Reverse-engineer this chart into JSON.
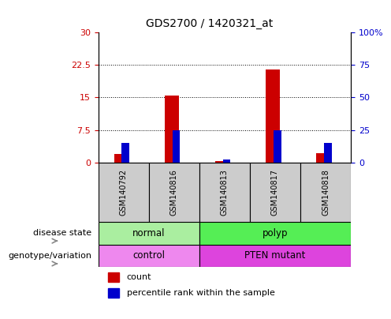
{
  "title": "GDS2700 / 1420321_at",
  "samples": [
    "GSM140792",
    "GSM140816",
    "GSM140813",
    "GSM140817",
    "GSM140818"
  ],
  "counts": [
    2.0,
    15.5,
    0.25,
    21.5,
    2.2
  ],
  "percentile_ranks_pct": [
    15,
    25,
    2.5,
    25,
    15
  ],
  "ylim_left": [
    0,
    30
  ],
  "ylim_right": [
    0,
    100
  ],
  "yticks_left": [
    0,
    7.5,
    15,
    22.5,
    30
  ],
  "ytick_labels_left": [
    "0",
    "7.5",
    "15",
    "22.5",
    "30"
  ],
  "ytick_labels_right": [
    "0",
    "25",
    "50",
    "75",
    "100%"
  ],
  "bar_color_count": "#cc0000",
  "bar_color_pct": "#0000cc",
  "disease_state": [
    {
      "label": "normal",
      "spans": [
        0,
        2
      ],
      "color": "#aaeea a"
    },
    {
      "label": "polyp",
      "spans": [
        2,
        5
      ],
      "color": "#55ee55"
    }
  ],
  "genotype": [
    {
      "label": "control",
      "spans": [
        0,
        2
      ],
      "color": "#ee88ee"
    },
    {
      "label": "PTEN mutant",
      "spans": [
        2,
        5
      ],
      "color": "#dd44dd"
    }
  ],
  "xlabel_row1": "disease state",
  "xlabel_row2": "genotype/variation",
  "legend_count": "count",
  "legend_pct": "percentile rank within the sample"
}
